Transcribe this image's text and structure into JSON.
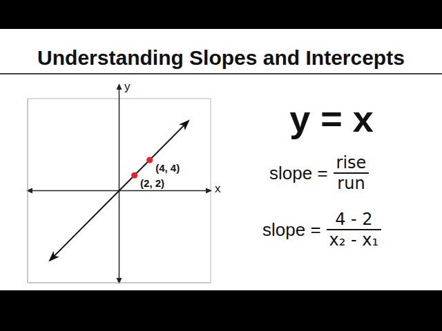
{
  "chart_data": {
    "type": "line",
    "title": "Understanding Slopes and Intercepts",
    "x_label": "x",
    "y_label": "y",
    "xlim": [
      -12,
      12
    ],
    "ylim": [
      -12,
      12
    ],
    "xticks": [
      -12,
      -11,
      -10,
      -9,
      -8,
      -7,
      -6,
      -5,
      -4,
      -3,
      -2,
      -1,
      0,
      1,
      2,
      3,
      4,
      5,
      6,
      7,
      8,
      9,
      10,
      11,
      12
    ],
    "yticks": [
      -12,
      -11,
      -10,
      -9,
      -8,
      -7,
      -6,
      -5,
      -4,
      -3,
      -2,
      -1,
      0,
      1,
      2,
      3,
      4,
      5,
      6,
      7,
      8,
      9,
      10,
      11,
      12
    ],
    "grid": true,
    "tick_labels": false,
    "series": [
      {
        "type": "line",
        "color": "#111111",
        "marker": "arrow",
        "x": [
          -9,
          9
        ],
        "values": [
          -9,
          9
        ]
      },
      {
        "type": "scatter",
        "color": "#e8202a",
        "marker": "circle",
        "x": [
          2,
          4
        ],
        "values": [
          2,
          4
        ],
        "data_labels": true,
        "value_labels": [
          "(2, 2)",
          "(4, 4)"
        ]
      }
    ],
    "annotations": {
      "equation": "y = x",
      "formulas": [
        {
          "lhs": "slope =",
          "numerator": "rise",
          "denominator": "run"
        },
        {
          "lhs": "slope =",
          "numerator": "4 - 2",
          "denominator": "x₂ - x₁"
        }
      ]
    }
  }
}
